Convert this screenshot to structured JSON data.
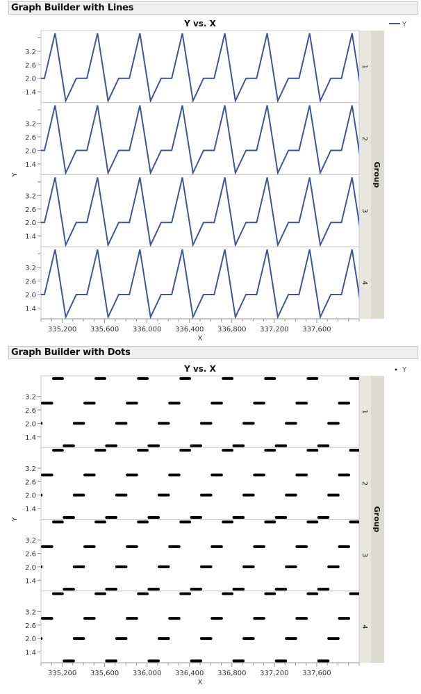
{
  "reports": [
    {
      "header": "Graph Builder with Lines",
      "title": "Y vs. X",
      "legend": {
        "label": "Y",
        "marker": "line"
      },
      "xlabel": "X",
      "ylabel": "Y",
      "group_label": "Group",
      "groups": [
        "1",
        "2",
        "3",
        "4"
      ],
      "style": "lines"
    },
    {
      "header": "Graph Builder with Dots",
      "title": "Y vs. X",
      "legend": {
        "label": "Y",
        "marker": "dot"
      },
      "xlabel": "X",
      "ylabel": "Y",
      "group_label": "Group",
      "groups": [
        "1",
        "2",
        "3",
        "4"
      ],
      "style": "dots"
    }
  ],
  "colors": {
    "line": "#3f5597",
    "dot": "#000000",
    "frame": "#c8c8c8",
    "strip_light": "#e8e7df",
    "strip_dark": "#dcdbcf",
    "header_bg": "#f0f0f0"
  },
  "chart_data": [
    {
      "type": "line",
      "title": "Y vs. X",
      "xlabel": "X",
      "ylabel": "Y",
      "facet_by": "Group",
      "facets": [
        "1",
        "2",
        "3",
        "4"
      ],
      "xlim": [
        335000,
        338000
      ],
      "ylim": [
        0.92,
        4.12
      ],
      "x_ticks": [
        335200,
        335600,
        336000,
        336400,
        336800,
        337200,
        337600
      ],
      "x_tick_labels": [
        "335,200",
        "335,600",
        "336,000",
        "336,400",
        "336,800",
        "337,200",
        "337,600"
      ],
      "x_minor_step": 100,
      "y_ticks": [
        1.4,
        2.0,
        2.6,
        3.2
      ],
      "y_tick_labels": [
        "1.4",
        "2.0",
        "2.6",
        "3.2"
      ],
      "y_minor_ticks": [
        3.8
      ],
      "legend": [
        "Y"
      ],
      "legend_position": "top-right",
      "grid": false,
      "series_pattern": {
        "x_start": 334933,
        "x_step": 100,
        "values_cycle": [
          2.0,
          2.0,
          4.0,
          1.0
        ],
        "note": "repeats every 400 units in every group"
      },
      "series": [
        {
          "name": "Group 1",
          "x": [
            334933,
            335033,
            335133,
            335233,
            335333,
            335433,
            335533,
            335633,
            335733,
            335833,
            335933,
            336033,
            336133,
            336233,
            336333,
            336433,
            336533,
            336633,
            336733,
            336833,
            336933,
            337033,
            337133,
            337233,
            337333,
            337433,
            337533,
            337633,
            337733,
            337833,
            337933,
            338033
          ],
          "y": [
            2.0,
            2.0,
            4.0,
            1.0,
            2.0,
            2.0,
            4.0,
            1.0,
            2.0,
            2.0,
            4.0,
            1.0,
            2.0,
            2.0,
            4.0,
            1.0,
            2.0,
            2.0,
            4.0,
            1.0,
            2.0,
            2.0,
            4.0,
            1.0,
            2.0,
            2.0,
            4.0,
            1.0,
            2.0,
            2.0,
            4.0,
            1.0
          ]
        },
        {
          "name": "Group 2",
          "x": "same as Group 1",
          "y": "same as Group 1"
        },
        {
          "name": "Group 3",
          "x": "same as Group 1",
          "y": "same as Group 1"
        },
        {
          "name": "Group 4",
          "x": "same as Group 1",
          "y": "same as Group 1"
        }
      ]
    },
    {
      "type": "scatter",
      "title": "Y vs. X",
      "xlabel": "X",
      "ylabel": "Y",
      "facet_by": "Group",
      "facets": [
        "1",
        "2",
        "3",
        "4"
      ],
      "xlim": [
        335000,
        338000
      ],
      "ylim": [
        0.92,
        4.12
      ],
      "x_ticks": [
        335200,
        335600,
        336000,
        336400,
        336800,
        337200,
        337600
      ],
      "x_tick_labels": [
        "335,200",
        "335,600",
        "336,000",
        "336,400",
        "336,800",
        "337,200",
        "337,600"
      ],
      "y_ticks": [
        1.4,
        2.0,
        2.6,
        3.2
      ],
      "y_tick_labels": [
        "1.4",
        "2.0",
        "2.6",
        "3.2"
      ],
      "legend": [
        "Y"
      ],
      "legend_position": "top-right",
      "grid": false,
      "clusters_note": "dense runs of points (~110 units wide) repeating every 400 units",
      "cluster_pattern": [
        {
          "y": 2.9,
          "x_offset_start": 0,
          "x_offset_end": 115
        },
        {
          "y": 4.0,
          "x_offset_start": 105,
          "x_offset_end": 215
        },
        {
          "y": 1.0,
          "x_offset_start": 205,
          "x_offset_end": 320
        },
        {
          "y": 2.0,
          "x_offset_start": 300,
          "x_offset_end": 415
        }
      ],
      "period": 400,
      "x_origin": 335000
    }
  ]
}
